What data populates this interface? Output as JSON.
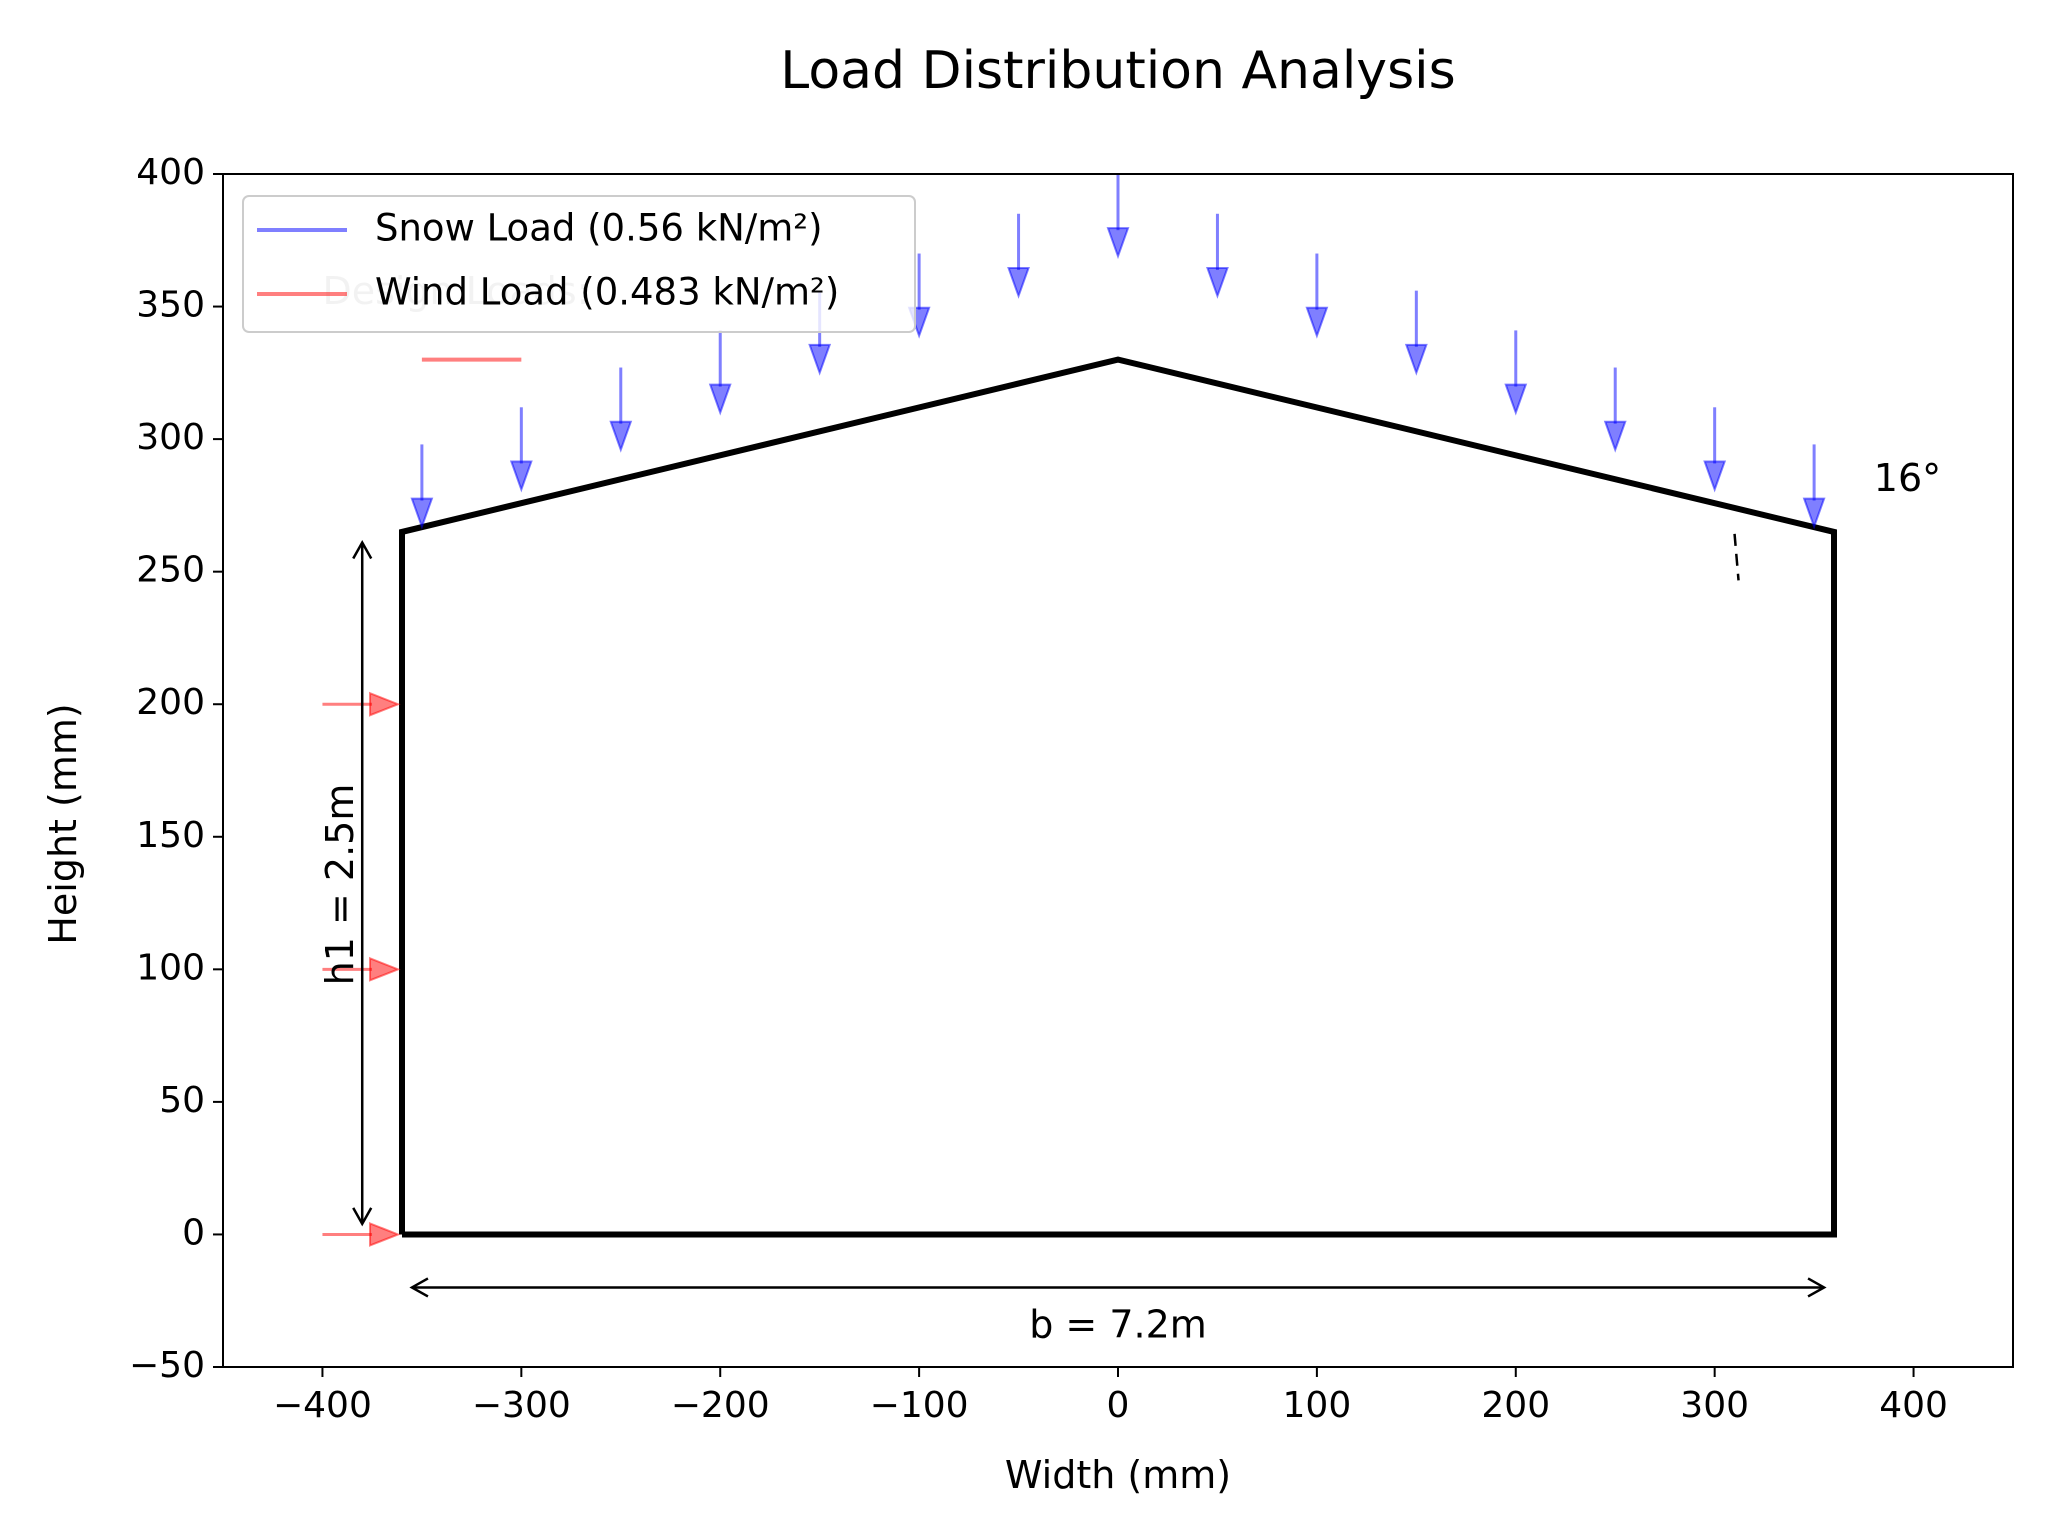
{
  "chart_data": {
    "type": "line",
    "title": "Load Distribution Analysis",
    "xlabel": "Width (mm)",
    "ylabel": "Height (mm)",
    "xlim": [
      -450,
      450
    ],
    "ylim": [
      -50,
      400
    ],
    "xticks": [
      -400,
      -300,
      -200,
      -100,
      0,
      100,
      200,
      300,
      400
    ],
    "xtick_labels": [
      "−400",
      "−300",
      "−200",
      "−100",
      "0",
      "100",
      "200",
      "300",
      "400"
    ],
    "yticks": [
      -50,
      0,
      50,
      100,
      150,
      200,
      250,
      300,
      350,
      400
    ],
    "ytick_labels": [
      "−50",
      "0",
      "50",
      "100",
      "150",
      "200",
      "250",
      "300",
      "350",
      "400"
    ],
    "grid": false,
    "structure": {
      "x": [
        -360,
        -360,
        0,
        360,
        360,
        -360
      ],
      "y": [
        0,
        265,
        330,
        265,
        0,
        0
      ],
      "color": "#000000"
    },
    "snow_load": {
      "name": "Snow Load (0.56 kN/m²)",
      "color": "#0000ff",
      "arrows": [
        {
          "x": -350,
          "y_top": 298,
          "y_tip": 267
        },
        {
          "x": -300,
          "y_top": 312,
          "y_tip": 281
        },
        {
          "x": -250,
          "y_top": 327,
          "y_tip": 296
        },
        {
          "x": -200,
          "y_top": 341,
          "y_tip": 310
        },
        {
          "x": -150,
          "y_top": 356,
          "y_tip": 325
        },
        {
          "x": -100,
          "y_top": 370,
          "y_tip": 339
        },
        {
          "x": -50,
          "y_top": 385,
          "y_tip": 354
        },
        {
          "x": 0,
          "y_top": 400,
          "y_tip": 369
        },
        {
          "x": 50,
          "y_top": 385,
          "y_tip": 354
        },
        {
          "x": 100,
          "y_top": 370,
          "y_tip": 339
        },
        {
          "x": 150,
          "y_top": 356,
          "y_tip": 325
        },
        {
          "x": 200,
          "y_top": 341,
          "y_tip": 310
        },
        {
          "x": 250,
          "y_top": 327,
          "y_tip": 296
        },
        {
          "x": 300,
          "y_top": 312,
          "y_tip": 281
        },
        {
          "x": 350,
          "y_top": 298,
          "y_tip": 267
        }
      ]
    },
    "wind_load": {
      "name": "Wind Load (0.483 kN/m²)",
      "color": "#ff0000",
      "arrows": [
        {
          "y": 0,
          "x_start": -400,
          "x_tip": -362
        },
        {
          "y": 100,
          "x_start": -400,
          "x_tip": -362
        },
        {
          "y": 200,
          "x_start": -400,
          "x_tip": -362
        }
      ]
    },
    "annotations": {
      "height_dim": {
        "text": "h1 = 2.5m",
        "x": -380,
        "y_from": 4,
        "y_to": 261,
        "label_x": -390,
        "label_y": 132
      },
      "width_dim": {
        "text": "b = 7.2m",
        "y": -20,
        "x_from": -355,
        "x_to": 355,
        "label_x": 0,
        "label_y": -35
      },
      "angle": {
        "text": "16°",
        "x": 380,
        "y": 285
      },
      "angle_marker": {
        "x": [
          310,
          312
        ],
        "y": [
          265,
          252
        ]
      },
      "design_loads_text": {
        "text": "Design Loads:",
        "x": -400,
        "y": 355
      },
      "design_wind_swatch": {
        "x": [
          -350,
          -300
        ],
        "y": 330
      }
    },
    "legend": {
      "placement": "top-left",
      "entries": [
        {
          "label": "Snow Load (0.56 kN/m²)",
          "color": "#0000ff"
        },
        {
          "label": "Wind Load (0.483 kN/m²)",
          "color": "#ff0000"
        }
      ]
    }
  }
}
